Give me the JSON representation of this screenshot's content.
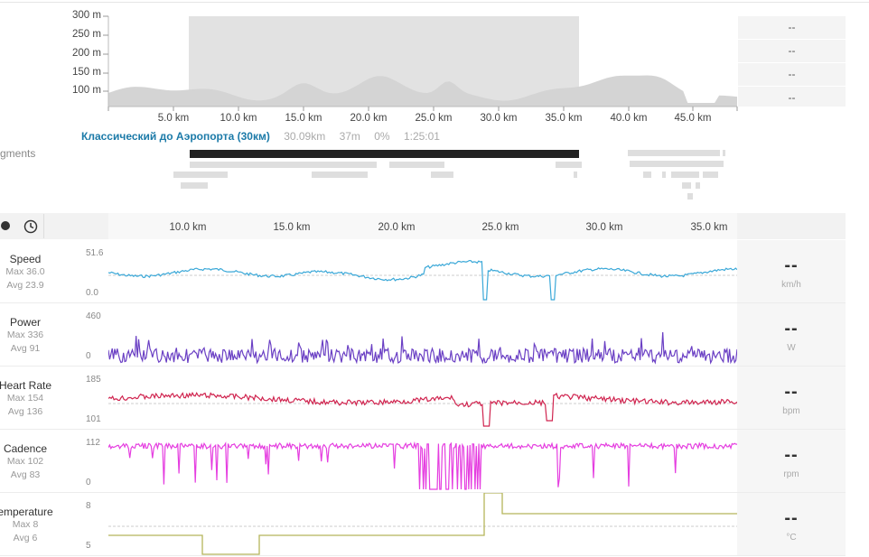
{
  "elevation": {
    "y_ticks": [
      "300 m",
      "250 m",
      "200 m",
      "150 m",
      "100 m"
    ],
    "x_ticks": [
      "5.0 km",
      "10.0 km",
      "15.0 km",
      "20.0 km",
      "25.0 km",
      "30.0 km",
      "35.0 km",
      "40.0 km",
      "45.0 km"
    ],
    "side_values": [
      "--",
      "--",
      "--",
      "--"
    ],
    "selection_km": [
      6.1,
      36.1
    ],
    "total_km": 48.2
  },
  "segments": {
    "label": "gments",
    "name": "Классический до Аэропорта (30км)",
    "distance": "30.09km",
    "elevation_gain": "37m",
    "grade": "0%",
    "time": "1:25:01"
  },
  "analysis": {
    "x_ticks": [
      "10.0 km",
      "15.0 km",
      "20.0 km",
      "25.0 km",
      "30.0 km",
      "35.0 km"
    ],
    "metrics": [
      {
        "name": "Speed",
        "max": "Max 36.0",
        "avg": "Avg 23.9",
        "y_top": "51.6",
        "y_bottom": "0.0",
        "value": "--",
        "unit": "km/h",
        "color": "#3aa8d8"
      },
      {
        "name": "Power",
        "max": "Max 336",
        "avg": "Avg 91",
        "y_top": "460",
        "y_bottom": "0",
        "value": "--",
        "unit": "W",
        "color": "#6a3fc4"
      },
      {
        "name": "Heart Rate",
        "max": "Max 154",
        "avg": "Avg 136",
        "y_top": "185",
        "y_bottom": "101",
        "value": "--",
        "unit": "bpm",
        "color": "#d0244f"
      },
      {
        "name": "Cadence",
        "max": "Max 102",
        "avg": "Avg 83",
        "y_top": "112",
        "y_bottom": "0",
        "value": "--",
        "unit": "rpm",
        "color": "#e53ee0"
      },
      {
        "name": "emperature",
        "max": "Max 8",
        "avg": "Avg 6",
        "y_top": "8",
        "y_bottom": "5",
        "value": "--",
        "unit": "°C",
        "color": "#b5b55a"
      }
    ]
  },
  "colors": {
    "segment_name": "#1b7aa8",
    "elevation_fill": "#d4d4d4",
    "selection": "#e2e2e2"
  }
}
